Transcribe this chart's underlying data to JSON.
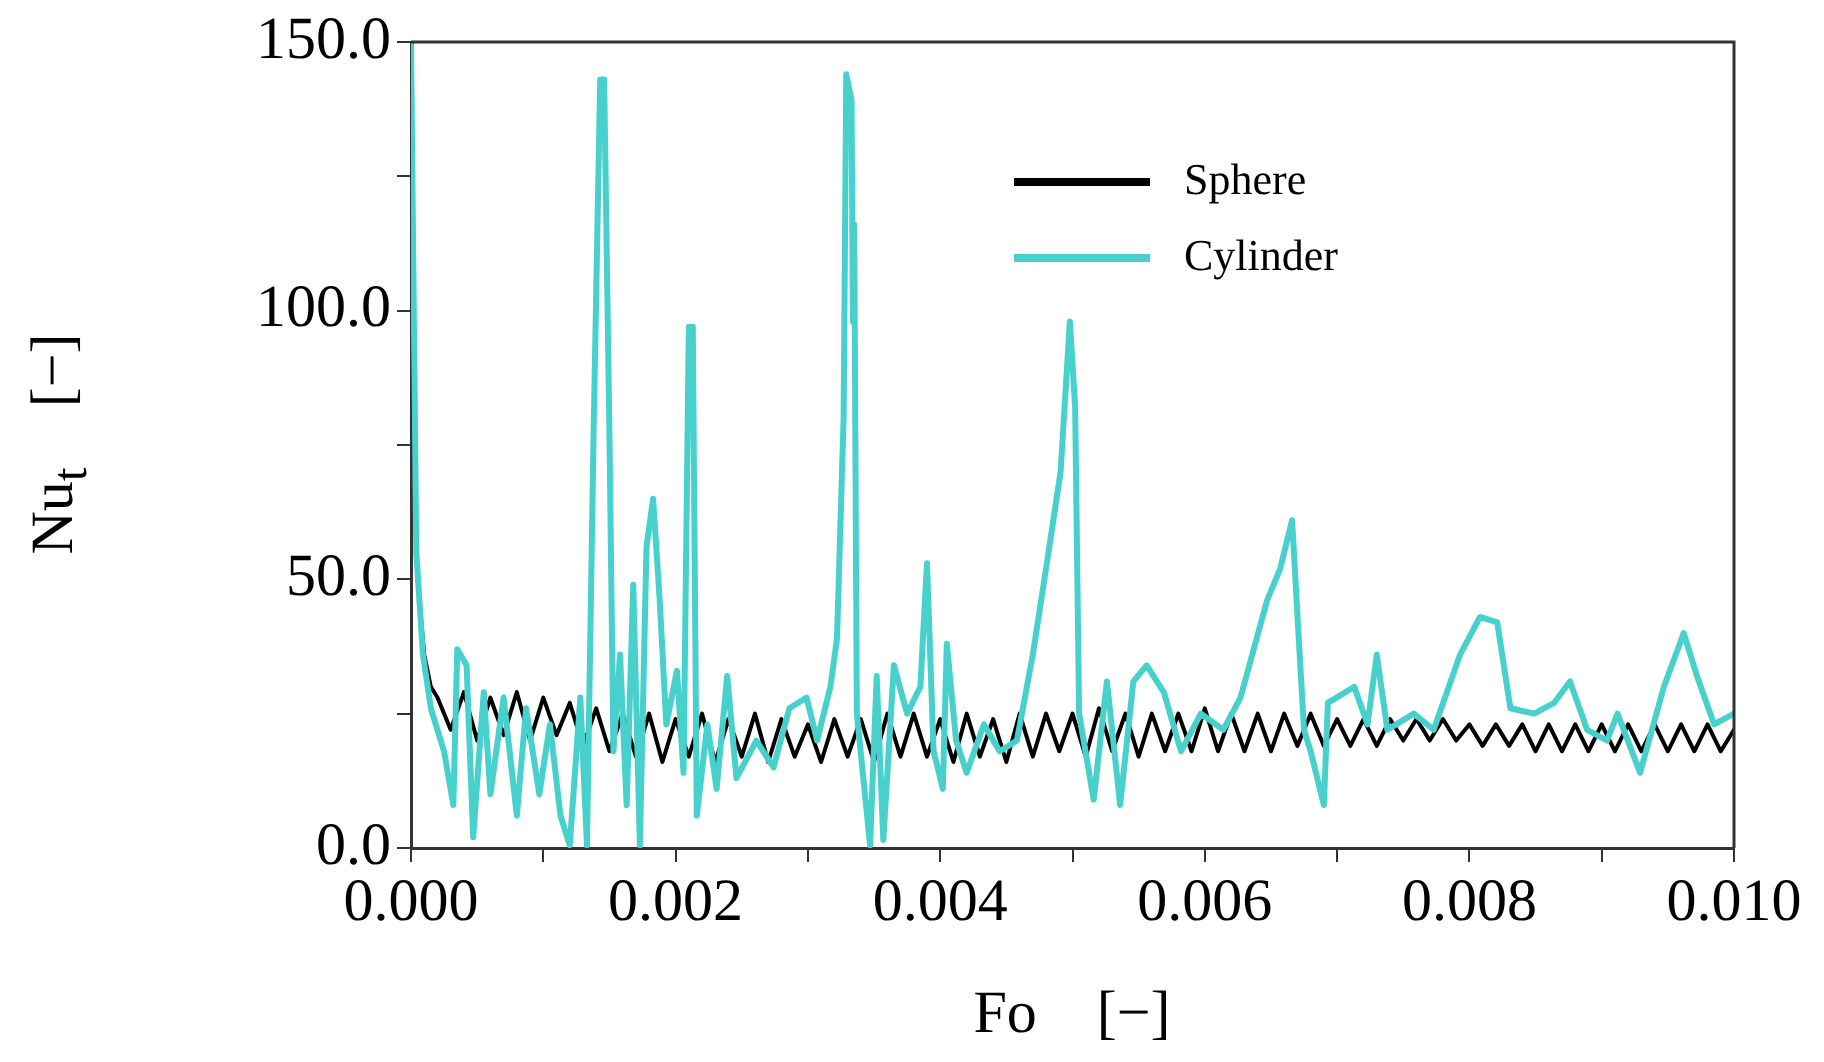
{
  "chart_data": {
    "type": "line",
    "xlabel": "Fo    [−]",
    "ylabel": "Nu$_{t}$    [−]",
    "xlim": [
      0,
      0.01
    ],
    "ylim": [
      0,
      150
    ],
    "xticks": [
      {
        "value": 0,
        "label": "0.000"
      },
      {
        "value": 0.001,
        "label": null
      },
      {
        "value": 0.002,
        "label": "0.002"
      },
      {
        "value": 0.003,
        "label": null
      },
      {
        "value": 0.004,
        "label": "0.004"
      },
      {
        "value": 0.005,
        "label": null
      },
      {
        "value": 0.006,
        "label": "0.006"
      },
      {
        "value": 0.007,
        "label": null
      },
      {
        "value": 0.008,
        "label": "0.008"
      },
      {
        "value": 0.009,
        "label": null
      },
      {
        "value": 0.01,
        "label": "0.010"
      }
    ],
    "yticks": [
      {
        "value": 0,
        "label": "0.0"
      },
      {
        "value": 25,
        "label": null
      },
      {
        "value": 50,
        "label": "50.0"
      },
      {
        "value": 75,
        "label": null
      },
      {
        "value": 100,
        "label": "100.0"
      },
      {
        "value": 125,
        "label": null
      },
      {
        "value": 150,
        "label": "150.0"
      }
    ],
    "grid": false,
    "legend": "top right",
    "marker": "none",
    "line_style": "solid",
    "series": [
      {
        "name": "Sphere",
        "color": "#000000",
        "x": [
          0,
          2e-05,
          5e-05,
          0.0001,
          0.00015,
          0.0002,
          0.0003,
          0.0004,
          0.0005,
          0.0006,
          0.0007,
          0.0008,
          0.0009,
          0.001,
          0.0011,
          0.0012,
          0.0013,
          0.0014,
          0.0015,
          0.0016,
          0.0017,
          0.0018,
          0.0019,
          0.002,
          0.0021,
          0.0022,
          0.0023,
          0.0024,
          0.0025,
          0.0026,
          0.0027,
          0.0028,
          0.0029,
          0.003,
          0.0031,
          0.0032,
          0.0033,
          0.0034,
          0.0035,
          0.0036,
          0.0037,
          0.0038,
          0.0039,
          0.004,
          0.0041,
          0.0042,
          0.0043,
          0.0044,
          0.0045,
          0.0046,
          0.0047,
          0.0048,
          0.0049,
          0.005,
          0.0051,
          0.0052,
          0.0053,
          0.0054,
          0.0055,
          0.0056,
          0.0057,
          0.0058,
          0.0059,
          0.006,
          0.0061,
          0.0062,
          0.0063,
          0.0064,
          0.0065,
          0.0066,
          0.0067,
          0.0068,
          0.0069,
          0.007,
          0.0071,
          0.0072,
          0.0073,
          0.0074,
          0.0075,
          0.0076,
          0.0077,
          0.0078,
          0.0079,
          0.008,
          0.0081,
          0.0082,
          0.0083,
          0.0084,
          0.0085,
          0.0086,
          0.0087,
          0.0088,
          0.0089,
          0.009,
          0.0091,
          0.0092,
          0.0093,
          0.0094,
          0.0095,
          0.0096,
          0.0097,
          0.0098,
          0.0099,
          0.01
        ],
        "values": [
          150,
          80,
          50,
          36,
          30,
          28,
          22,
          29,
          20,
          28,
          21,
          29,
          20,
          28,
          21,
          27,
          19,
          26,
          18,
          25,
          17,
          25,
          16,
          24,
          17,
          25,
          16,
          24,
          17,
          25,
          16,
          24,
          17,
          23,
          16,
          24,
          17,
          24,
          16,
          25,
          17,
          25,
          17,
          24,
          16,
          25,
          17,
          24,
          16,
          25,
          17,
          25,
          18,
          25,
          17,
          26,
          18,
          25,
          17,
          25,
          18,
          25,
          18,
          26,
          18,
          25,
          18,
          25,
          18,
          25,
          19,
          25,
          19,
          24,
          19,
          24,
          19,
          24,
          20,
          24,
          20,
          24,
          20,
          23,
          19,
          23,
          19,
          23,
          18,
          23,
          18,
          23,
          18,
          23,
          18,
          23,
          18,
          23,
          18,
          23,
          18,
          23,
          18,
          22
        ]
      },
      {
        "name": "Cylinder",
        "color": "#48d1cc",
        "x": [
          0,
          4e-05,
          9e-05,
          0.00015,
          0.00025,
          0.00032,
          0.00035,
          0.00042,
          0.00047,
          0.00055,
          0.0006,
          0.0007,
          0.0008,
          0.00087,
          0.00097,
          0.00105,
          0.00113,
          0.0012,
          0.00128,
          0.00133,
          0.00138,
          0.00143,
          0.00146,
          0.0015,
          0.00153,
          0.00158,
          0.00163,
          0.00168,
          0.00173,
          0.00178,
          0.00183,
          0.00188,
          0.00193,
          0.00201,
          0.00206,
          0.0021,
          0.00213,
          0.00216,
          0.00224,
          0.00231,
          0.00239,
          0.00246,
          0.00261,
          0.00274,
          0.00286,
          0.00299,
          0.00307,
          0.00317,
          0.00322,
          0.00327,
          0.00329,
          0.00333,
          0.00334,
          0.00335,
          0.00337,
          0.00347,
          0.00352,
          0.00357,
          0.00365,
          0.00375,
          0.00385,
          0.0039,
          0.00395,
          0.00402,
          0.00405,
          0.00412,
          0.0042,
          0.00433,
          0.00445,
          0.00458,
          0.0047,
          0.0048,
          0.00491,
          0.00498,
          0.00502,
          0.00505,
          0.00516,
          0.00526,
          0.00536,
          0.00546,
          0.00556,
          0.00569,
          0.00582,
          0.00597,
          0.00614,
          0.00627,
          0.00647,
          0.00657,
          0.00666,
          0.00671,
          0.00675,
          0.0068,
          0.0069,
          0.00693,
          0.00713,
          0.00723,
          0.0073,
          0.00738,
          0.00758,
          0.00773,
          0.00793,
          0.00808,
          0.00821,
          0.00831,
          0.00849,
          0.00864,
          0.00876,
          0.00889,
          0.00904,
          0.00912,
          0.00929,
          0.00947,
          0.00962,
          0.00972,
          0.00985,
          0.01
        ],
        "values": [
          150,
          55,
          36,
          26,
          18,
          8,
          37,
          34,
          2,
          29,
          10,
          28,
          6,
          26,
          10,
          23,
          6,
          0.5,
          28,
          0.5,
          77,
          143,
          143,
          77,
          18,
          36,
          8,
          49,
          0.5,
          56,
          65,
          46,
          23,
          33,
          14,
          97,
          97,
          6,
          23,
          11,
          32,
          13,
          20,
          15,
          26,
          28,
          20,
          30,
          39,
          80,
          144,
          139,
          98,
          116,
          25,
          0.5,
          32,
          1.5,
          34,
          25,
          30,
          53,
          18,
          11,
          38,
          20,
          14,
          23,
          18,
          20,
          36,
          52,
          70,
          98,
          82,
          25,
          9,
          31,
          8,
          31,
          34,
          29,
          18,
          25,
          22,
          28,
          46,
          52,
          61,
          39,
          22,
          18,
          8,
          27,
          30,
          23,
          36,
          22,
          25,
          22,
          36,
          43,
          42,
          26,
          25,
          27,
          31,
          22,
          20,
          25,
          14,
          30,
          40,
          32,
          23,
          25
        ]
      }
    ]
  }
}
